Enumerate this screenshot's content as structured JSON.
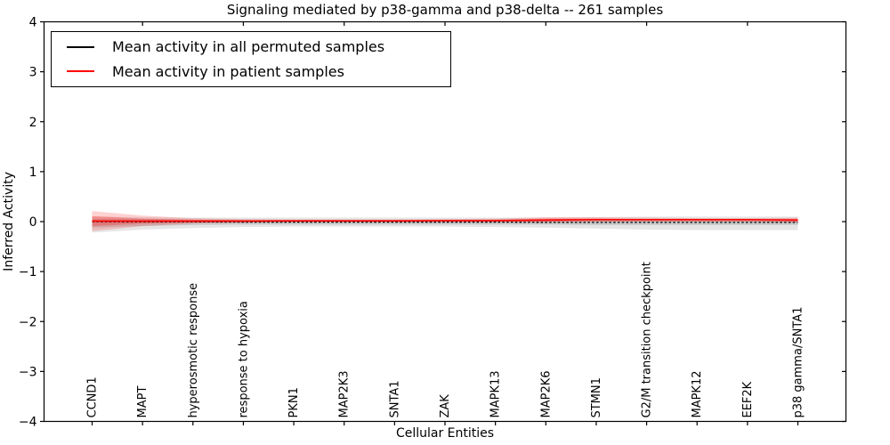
{
  "figure": {
    "title": "Signaling mediated by p38-gamma and p38-delta -- 261 samples",
    "xlabel": "Cellular Entities",
    "ylabel": "Inferred Activity"
  },
  "legend": {
    "items": [
      {
        "label": "Mean activity in all permuted samples",
        "color": "#000000"
      },
      {
        "label": "Mean activity in patient samples",
        "color": "#ff0000"
      }
    ]
  },
  "chart_data": {
    "type": "line",
    "title": "Signaling mediated by p38-gamma and p38-delta -- 261 samples",
    "xlabel": "Cellular Entities",
    "ylabel": "Inferred Activity",
    "ylim": [
      -4,
      4
    ],
    "yticks": [
      4,
      3,
      2,
      1,
      0,
      -1,
      -2,
      -3,
      -4
    ],
    "grid": false,
    "legend_position": "upper left",
    "categories": [
      "CCND1",
      "MAPT",
      "hyperosmotic response",
      "response to hypoxia",
      "PKN1",
      "MAP2K3",
      "SNTA1",
      "ZAK",
      "MAPK13",
      "MAP2K6",
      "STMN1",
      "G2/M transition checkpoint",
      "MAPK12",
      "EEF2K",
      "p38 gamma/SNTA1"
    ],
    "series": [
      {
        "name": "Mean activity in all permuted samples",
        "color": "#000000",
        "style": "dashed",
        "values": [
          0.0,
          -0.005,
          -0.005,
          -0.01,
          -0.01,
          -0.01,
          -0.01,
          -0.01,
          -0.01,
          -0.015,
          -0.015,
          -0.015,
          -0.015,
          -0.015,
          -0.015
        ],
        "band_outer_upper": [
          0.1,
          0.09,
          0.08,
          0.08,
          0.08,
          0.08,
          0.08,
          0.08,
          0.08,
          0.08,
          0.09,
          0.1,
          0.1,
          0.1,
          0.1
        ],
        "band_outer_lower": [
          -0.22,
          -0.16,
          -0.13,
          -0.11,
          -0.1,
          -0.1,
          -0.1,
          -0.1,
          -0.11,
          -0.12,
          -0.14,
          -0.16,
          -0.17,
          -0.17,
          -0.17
        ],
        "band_inner_upper": [
          0.05,
          0.05,
          0.04,
          0.04,
          0.04,
          0.04,
          0.04,
          0.04,
          0.04,
          0.05,
          0.05,
          0.05,
          0.05,
          0.05,
          0.05
        ],
        "band_inner_lower": [
          -0.12,
          -0.09,
          -0.07,
          -0.06,
          -0.06,
          -0.06,
          -0.06,
          -0.06,
          -0.06,
          -0.06,
          -0.07,
          -0.07,
          -0.07,
          -0.07,
          -0.07
        ],
        "band_color": "#8c8c8c",
        "band_opacity": 0.22
      },
      {
        "name": "Mean activity in patient samples",
        "color": "#ff0000",
        "style": "solid",
        "values": [
          0.01,
          0.01,
          0.01,
          0.01,
          0.015,
          0.015,
          0.015,
          0.02,
          0.02,
          0.03,
          0.04,
          0.04,
          0.04,
          0.04,
          0.03
        ],
        "band_outer_upper": [
          0.21,
          0.12,
          0.07,
          0.05,
          0.04,
          0.04,
          0.04,
          0.05,
          0.06,
          0.09,
          0.09,
          0.08,
          0.07,
          0.07,
          0.08
        ],
        "band_outer_lower": [
          -0.19,
          -0.09,
          -0.04,
          -0.02,
          -0.01,
          -0.01,
          -0.01,
          -0.01,
          -0.01,
          -0.01,
          0.0,
          0.0,
          0.0,
          0.0,
          -0.02
        ],
        "band_inner_upper": [
          0.11,
          0.06,
          0.04,
          0.03,
          0.03,
          0.03,
          0.03,
          0.03,
          0.04,
          0.06,
          0.06,
          0.05,
          0.05,
          0.05,
          0.06
        ],
        "band_inner_lower": [
          -0.09,
          -0.04,
          -0.02,
          -0.01,
          0.0,
          0.0,
          0.0,
          0.0,
          0.0,
          0.0,
          0.01,
          0.01,
          0.01,
          0.01,
          0.0
        ],
        "band_color": "#ff0000",
        "band_opacity": 0.18
      }
    ]
  }
}
